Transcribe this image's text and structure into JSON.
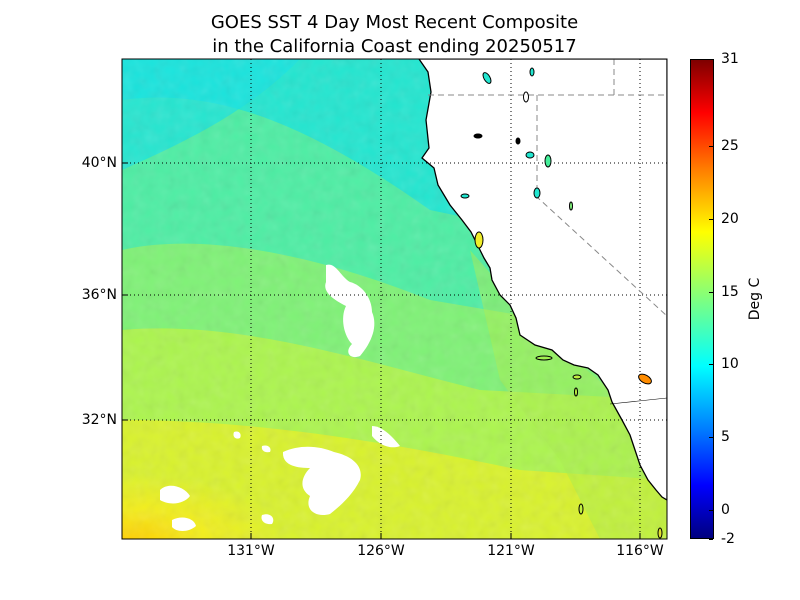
{
  "title": {
    "line1": "GOES SST 4 Day Most Recent Composite",
    "line2": "in the California Coast ending 20250517"
  },
  "map": {
    "lon_range": [
      -135.3,
      -114.5
    ],
    "lat_range": [
      28.3,
      43.1
    ],
    "parallels": [
      40,
      36,
      32
    ],
    "meridians": [
      -131,
      -126,
      -121,
      -116
    ],
    "parallel_labels": [
      "40°N",
      "36°N",
      "32°N"
    ],
    "meridian_labels": [
      "131°W",
      "126°W",
      "121°W",
      "116°W"
    ],
    "field": "sea surface temperature",
    "land_color": "#ffffff",
    "gridlines": "dotted",
    "state_borders": "dashed"
  },
  "colorbar": {
    "label": "Deg C",
    "min": -2,
    "max": 31,
    "ticks": [
      -2,
      0,
      5,
      10,
      15,
      20,
      25,
      31
    ],
    "colormap": "jet"
  }
}
